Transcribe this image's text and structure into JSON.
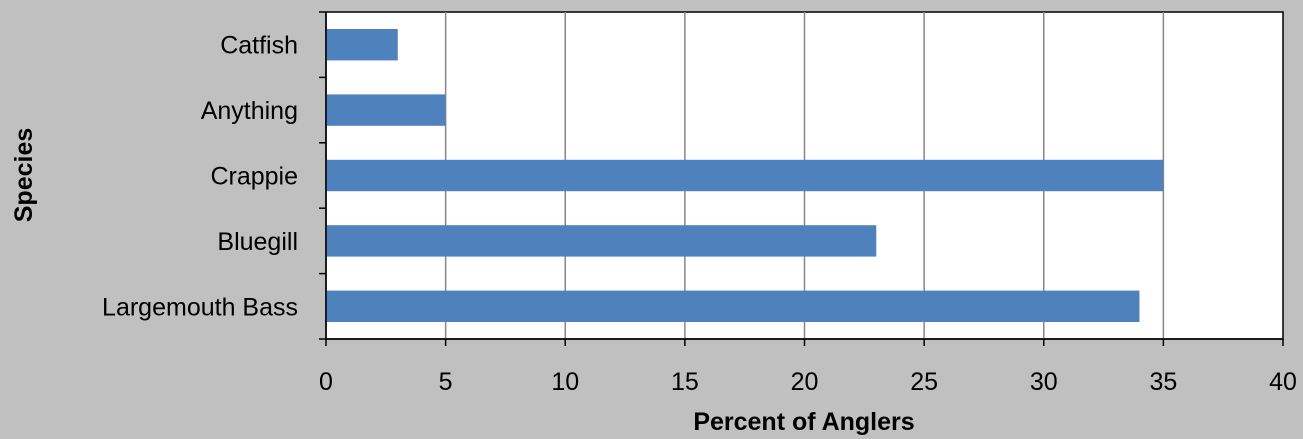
{
  "chart_data": {
    "type": "bar",
    "orientation": "horizontal",
    "categories": [
      "Largemouth Bass",
      "Bluegill",
      "Crappie",
      "Anything",
      "Catfish"
    ],
    "values": [
      34,
      23,
      35,
      5,
      3
    ],
    "xlabel": "Percent of Anglers",
    "ylabel": "Species",
    "xlim": [
      0,
      40
    ],
    "xticks": [
      0,
      5,
      10,
      15,
      20,
      25,
      30,
      35,
      40
    ],
    "grid": "vertical",
    "legend": "none",
    "colors": {
      "bar": "#4f81bd",
      "plot_background": "#ffffff",
      "page_background": "#c0c0c0",
      "gridline": "#878787"
    }
  }
}
